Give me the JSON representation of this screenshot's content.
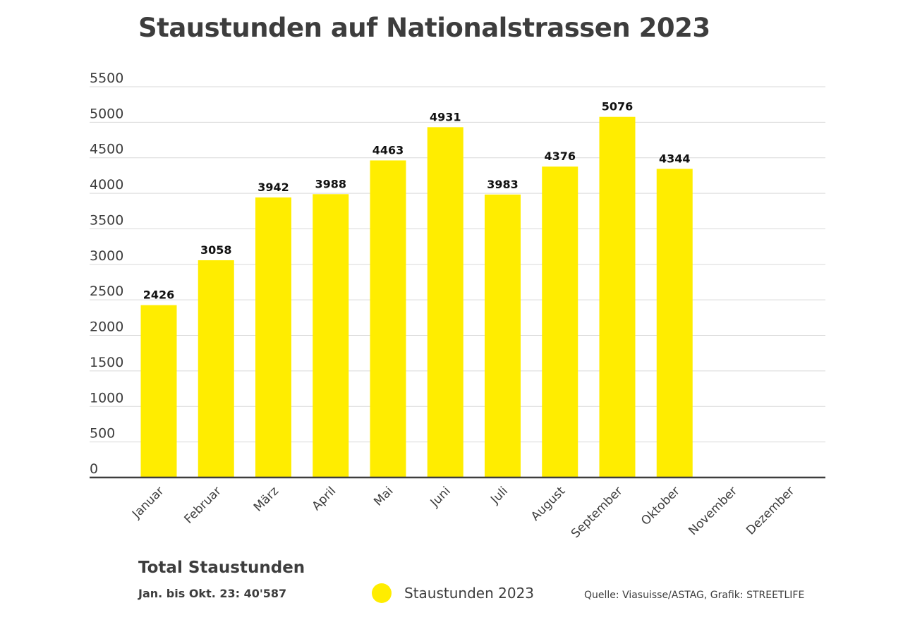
{
  "chart_data": {
    "type": "bar",
    "title": "Staustunden auf Nationalstrassen 2023",
    "categories": [
      "Januar",
      "Februar",
      "März",
      "April",
      "Mai",
      "Juni",
      "Juli",
      "August",
      "September",
      "Oktober",
      "November",
      "Dezember"
    ],
    "series": [
      {
        "name": "Staustunden 2023",
        "values": [
          2426,
          3058,
          3942,
          3988,
          4463,
          4931,
          3983,
          4376,
          5076,
          4344,
          null,
          null
        ],
        "color": "#FFED00"
      }
    ],
    "ylim": [
      0,
      5500
    ],
    "yticks": [
      "5500",
      "5000",
      "4500",
      "4000",
      "3500",
      "3000",
      "2500",
      "2000",
      "1500",
      "1000",
      "500",
      "0"
    ],
    "grid": true,
    "xlabel": "",
    "ylabel": ""
  },
  "summary": {
    "heading": "Total Staustunden",
    "value": "Jan. bis Okt. 23: 40'587"
  },
  "legend": {
    "label": "Staustunden 2023",
    "color": "#FFED00"
  },
  "source": "Quelle: Viasuisse/ASTAG, Grafik: STREETLIFE",
  "colors": {
    "text": "#3d3d3d",
    "grid": "#d9d9d9",
    "axis": "#3d3d3d",
    "bar": "#FFED00"
  }
}
